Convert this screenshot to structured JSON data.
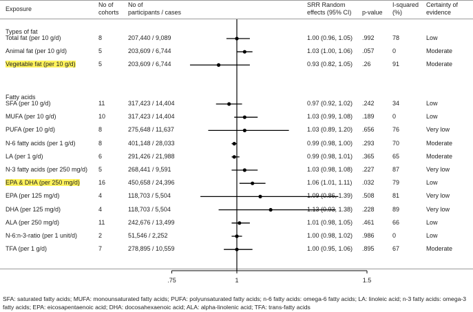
{
  "headers": {
    "exposure": "Exposure",
    "cohorts_1": "No of",
    "cohorts_2": "cohorts",
    "participants_1": "No of",
    "participants_2": "participants / cases",
    "srr_1": "SRR Random",
    "srr_2": "effects (95% CI)",
    "pvalue": "p-value",
    "isq_1": "I-squared",
    "isq_2": "(%)",
    "cert_1": "Certainty of",
    "cert_2": "evidence"
  },
  "sections": [
    {
      "title": "Types of fat",
      "rows": [
        {
          "exposure": "Total fat (per 10 g/d)",
          "cohorts": "8",
          "participants": "207,440 / 9,089",
          "srr": "1.00 (0.96, 1.05)",
          "p": ".992",
          "isq": "78",
          "certainty": "Low",
          "highlight": false
        },
        {
          "exposure": "Animal fat (per 10 g/d)",
          "cohorts": "5",
          "participants": "203,609 / 6,744",
          "srr": "1.03 (1.00, 1.06)",
          "p": ".057",
          "isq": "0",
          "certainty": "Moderate",
          "highlight": false
        },
        {
          "exposure": "Vegetable fat (per 10 g/d)",
          "cohorts": "5",
          "participants": "203,609 / 6,744",
          "srr": "0.93 (0.82, 1.05)",
          "p": ".26",
          "isq": "91",
          "certainty": "Moderate",
          "highlight": true
        }
      ]
    },
    {
      "title": "Fatty acids",
      "rows": [
        {
          "exposure": "SFA (per 10 g/d)",
          "cohorts": "11",
          "participants": "317,423 / 14,404",
          "srr": "0.97 (0.92, 1.02)",
          "p": ".242",
          "isq": "34",
          "certainty": "Low",
          "highlight": false
        },
        {
          "exposure": "MUFA (per 10 g/d)",
          "cohorts": "10",
          "participants": "317,423 / 14,404",
          "srr": "1.03 (0.99, 1.08)",
          "p": ".189",
          "isq": "0",
          "certainty": "Low",
          "highlight": false
        },
        {
          "exposure": "PUFA (per 10 g/d)",
          "cohorts": "8",
          "participants": "275,648 / 11,637",
          "srr": "1.03 (0.89, 1.20)",
          "p": ".656",
          "isq": "76",
          "certainty": "Very low",
          "highlight": false
        },
        {
          "exposure": "N-6 fatty acids (per 1 g/d)",
          "cohorts": "8",
          "participants": "401,148 / 28,033",
          "srr": "0.99 (0.98, 1.00)",
          "p": ".293",
          "isq": "70",
          "certainty": "Moderate",
          "highlight": false
        },
        {
          "exposure": "LA (per 1 g/d)",
          "cohorts": "6",
          "participants": "291,426 / 21,988",
          "srr": "0.99 (0.98, 1.01)",
          "p": ".365",
          "isq": "65",
          "certainty": "Moderate",
          "highlight": false
        },
        {
          "exposure": "N-3 fatty acids (per 250 mg/d)",
          "cohorts": "5",
          "participants": "268,441 / 9,591",
          "srr": "1.03 (0.98, 1.08)",
          "p": ".227",
          "isq": "87",
          "certainty": "Very low",
          "highlight": false
        },
        {
          "exposure": "EPA & DHA (per 250 mg/d)",
          "cohorts": "16",
          "participants": "450,658 / 24,396",
          "srr": "1.06 (1.01, 1.11)",
          "p": ".032",
          "isq": "79",
          "certainty": "Low",
          "highlight": true
        },
        {
          "exposure": "EPA (per 125 mg/d)",
          "cohorts": "4",
          "participants": "118,703 / 5,504",
          "srr": "1.09 (0.86, 1.39)",
          "p": ".508",
          "isq": "81",
          "certainty": "Very low",
          "highlight": false
        },
        {
          "exposure": "DHA (per 125 mg/d)",
          "cohorts": "4",
          "participants": "118,703 / 5,504",
          "srr": "1.13 (0.93, 1.38)",
          "p": ".228",
          "isq": "89",
          "certainty": "Very low",
          "highlight": false
        },
        {
          "exposure": "ALA (per 250 mg/d)",
          "cohorts": "11",
          "participants": "242,676 / 13,499",
          "srr": "1.01 (0.98, 1.05)",
          "p": ".461",
          "isq": "66",
          "certainty": "Low",
          "highlight": false
        },
        {
          "exposure": "N-6:n-3-ratio (per 1 unit/d)",
          "cohorts": "2",
          "participants": "51,546 / 2,252",
          "srr": "1.00 (0.98, 1.02)",
          "p": ".986",
          "isq": "0",
          "certainty": "Low",
          "highlight": false
        },
        {
          "exposure": "TFA (per 1 g/d)",
          "cohorts": "7",
          "participants": "278,895 / 10,559",
          "srr": "1.00 (0.95, 1.06)",
          "p": ".895",
          "isq": "67",
          "certainty": "Moderate",
          "highlight": false
        }
      ]
    }
  ],
  "footnote": "SFA: saturated fatty acids; MUFA: monounsaturated fatty acids; PUFA: polyunsaturated fatty acids; n-6 fatty acids: omega-6 fatty acids; LA: linoleic acid; n-3 fatty acids: omega-3 fatty acids; EPA: eicosapentaenoic acid; DHA: docosahexaenoic acid; ALA: alpha-linolenic acid; TFA: trans-fatty acids",
  "colors": {
    "marker": "#000000",
    "line": "#9a9a9a",
    "highlight": "#fff35c"
  },
  "chart_data": {
    "type": "forest",
    "xlabel": "",
    "xlim": [
      0.55,
      1.6
    ],
    "x_ticks": [
      0.75,
      1,
      1.5
    ],
    "x_tick_labels": [
      ".75",
      "1",
      "1.5"
    ],
    "reference_line": 1,
    "points": [
      {
        "label": "Total fat (per 10 g/d)",
        "est": 1.0,
        "lo": 0.96,
        "hi": 1.05
      },
      {
        "label": "Animal fat (per 10 g/d)",
        "est": 1.03,
        "lo": 1.0,
        "hi": 1.06
      },
      {
        "label": "Vegetable fat (per 10 g/d)",
        "est": 0.93,
        "lo": 0.82,
        "hi": 1.05
      },
      {
        "label": "SFA (per 10 g/d)",
        "est": 0.97,
        "lo": 0.92,
        "hi": 1.02
      },
      {
        "label": "MUFA (per 10 g/d)",
        "est": 1.03,
        "lo": 0.99,
        "hi": 1.08
      },
      {
        "label": "PUFA (per 10 g/d)",
        "est": 1.03,
        "lo": 0.89,
        "hi": 1.2
      },
      {
        "label": "N-6 fatty acids (per 1 g/d)",
        "est": 0.99,
        "lo": 0.98,
        "hi": 1.0
      },
      {
        "label": "LA (per 1 g/d)",
        "est": 0.99,
        "lo": 0.98,
        "hi": 1.01
      },
      {
        "label": "N-3 fatty acids (per 250 mg/d)",
        "est": 1.03,
        "lo": 0.98,
        "hi": 1.08
      },
      {
        "label": "EPA & DHA (per 250 mg/d)",
        "est": 1.06,
        "lo": 1.01,
        "hi": 1.11
      },
      {
        "label": "EPA (per 125 mg/d)",
        "est": 1.09,
        "lo": 0.86,
        "hi": 1.39
      },
      {
        "label": "DHA (per 125 mg/d)",
        "est": 1.13,
        "lo": 0.93,
        "hi": 1.38
      },
      {
        "label": "ALA (per 250 mg/d)",
        "est": 1.01,
        "lo": 0.98,
        "hi": 1.05
      },
      {
        "label": "N-6:n-3-ratio (per 1 unit/d)",
        "est": 1.0,
        "lo": 0.98,
        "hi": 1.02
      },
      {
        "label": "TFA (per 1 g/d)",
        "est": 1.0,
        "lo": 0.95,
        "hi": 1.06
      }
    ]
  }
}
